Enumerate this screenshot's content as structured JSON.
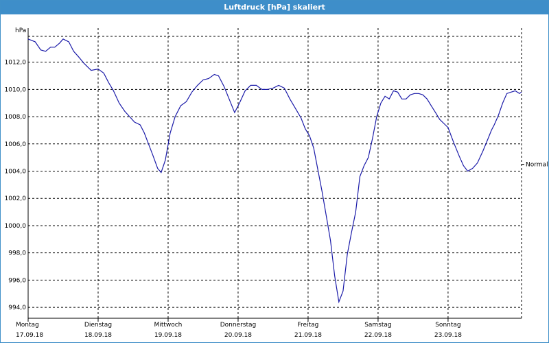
{
  "window": {
    "title": "Luftdruck [hPa] skaliert"
  },
  "colors": {
    "titlebar": "#3e8ec9",
    "series": "#1a1aa8",
    "grid": "#000000"
  },
  "chart_data": {
    "type": "line",
    "title": "Luftdruck [hPa] skaliert",
    "ylabel": "hPa",
    "ylim": [
      993.2,
      1014.5
    ],
    "grid": true,
    "yticks": [
      "994,0",
      "996,0",
      "998,0",
      "1000,0",
      "1002,0",
      "1004,0",
      "1006,0",
      "1008,0",
      "1010,0",
      "1012,0"
    ],
    "ytick_values": [
      994,
      996,
      998,
      1000,
      1002,
      1004,
      1006,
      1008,
      1010,
      1012
    ],
    "xticks": [
      {
        "day": "Montag",
        "date": "17.09.18"
      },
      {
        "day": "Dienstag",
        "date": "18.09.18"
      },
      {
        "day": "Mittwoch",
        "date": "19.09.18"
      },
      {
        "day": "Donnerstag",
        "date": "20.09.18"
      },
      {
        "day": "Freitag",
        "date": "21.09.18"
      },
      {
        "day": "Samstag",
        "date": "22.09.18"
      },
      {
        "day": "Sonntag",
        "date": "23.09.18"
      }
    ],
    "reference_line": {
      "label": "Normal",
      "value": 1004.5
    },
    "xlim": [
      0,
      7.05
    ],
    "series": [
      {
        "x": [
          0,
          0.1,
          0.18,
          0.25,
          0.32,
          0.38,
          0.45,
          0.5,
          0.58,
          0.65,
          0.72,
          0.8,
          0.9,
          1.0,
          1.08,
          1.15,
          1.22,
          1.3,
          1.38,
          1.45,
          1.52,
          1.6,
          1.66,
          1.72,
          1.78,
          1.85,
          1.9,
          1.96,
          2.03,
          2.1,
          2.18,
          2.26,
          2.34,
          2.42,
          2.5,
          2.58,
          2.66,
          2.72,
          2.8,
          2.88,
          2.95,
          3.02,
          3.1,
          3.18,
          3.26,
          3.34,
          3.42,
          3.5,
          3.58,
          3.66,
          3.74,
          3.82,
          3.9,
          3.96,
          4.02,
          4.08,
          4.14,
          4.2,
          4.26,
          4.32,
          4.38,
          4.44,
          4.5,
          4.56,
          4.62,
          4.68,
          4.74,
          4.8,
          4.86,
          4.92,
          4.98,
          5.04,
          5.1,
          5.16,
          5.22,
          5.28,
          5.34,
          5.4,
          5.46,
          5.52,
          5.58,
          5.64,
          5.7,
          5.76,
          5.82,
          5.88,
          5.94,
          6.0,
          6.08,
          6.16,
          6.22,
          6.28,
          6.35,
          6.42,
          6.5,
          6.58,
          6.62,
          6.66,
          6.72,
          6.78,
          6.84,
          6.9,
          6.96,
          7.02,
          7.05
        ],
        "y": [
          1013.7,
          1013.5,
          1012.9,
          1012.8,
          1013.1,
          1013.1,
          1013.4,
          1013.7,
          1013.5,
          1012.8,
          1012.4,
          1011.9,
          1011.4,
          1011.5,
          1011.2,
          1010.5,
          1009.9,
          1009.0,
          1008.4,
          1008.0,
          1007.6,
          1007.4,
          1006.8,
          1006.0,
          1005.2,
          1004.2,
          1003.9,
          1004.8,
          1006.8,
          1008.0,
          1008.8,
          1009.1,
          1009.8,
          1010.3,
          1010.7,
          1010.8,
          1011.1,
          1011.0,
          1010.2,
          1009.2,
          1008.3,
          1009.0,
          1009.9,
          1010.3,
          1010.3,
          1010.0,
          1010.0,
          1010.1,
          1010.3,
          1010.1,
          1009.3,
          1008.6,
          1007.9,
          1007.1,
          1006.6,
          1005.7,
          1004.1,
          1002.5,
          1000.7,
          998.9,
          996.3,
          994.4,
          995.2,
          997.9,
          999.5,
          1001.0,
          1003.6,
          1004.4,
          1005.0,
          1006.4,
          1008.0,
          1009.0,
          1009.5,
          1009.3,
          1009.9,
          1009.8,
          1009.3,
          1009.3,
          1009.6,
          1009.7,
          1009.7,
          1009.6,
          1009.3,
          1008.8,
          1008.3,
          1007.8,
          1007.5,
          1007.2,
          1006.1,
          1005.1,
          1004.4,
          1004.0,
          1004.2,
          1004.6,
          1005.5,
          1006.5,
          1007.0,
          1007.4,
          1008.1,
          1009.0,
          1009.7,
          1009.8,
          1009.9,
          1009.7,
          1009.8
        ]
      }
    ]
  }
}
